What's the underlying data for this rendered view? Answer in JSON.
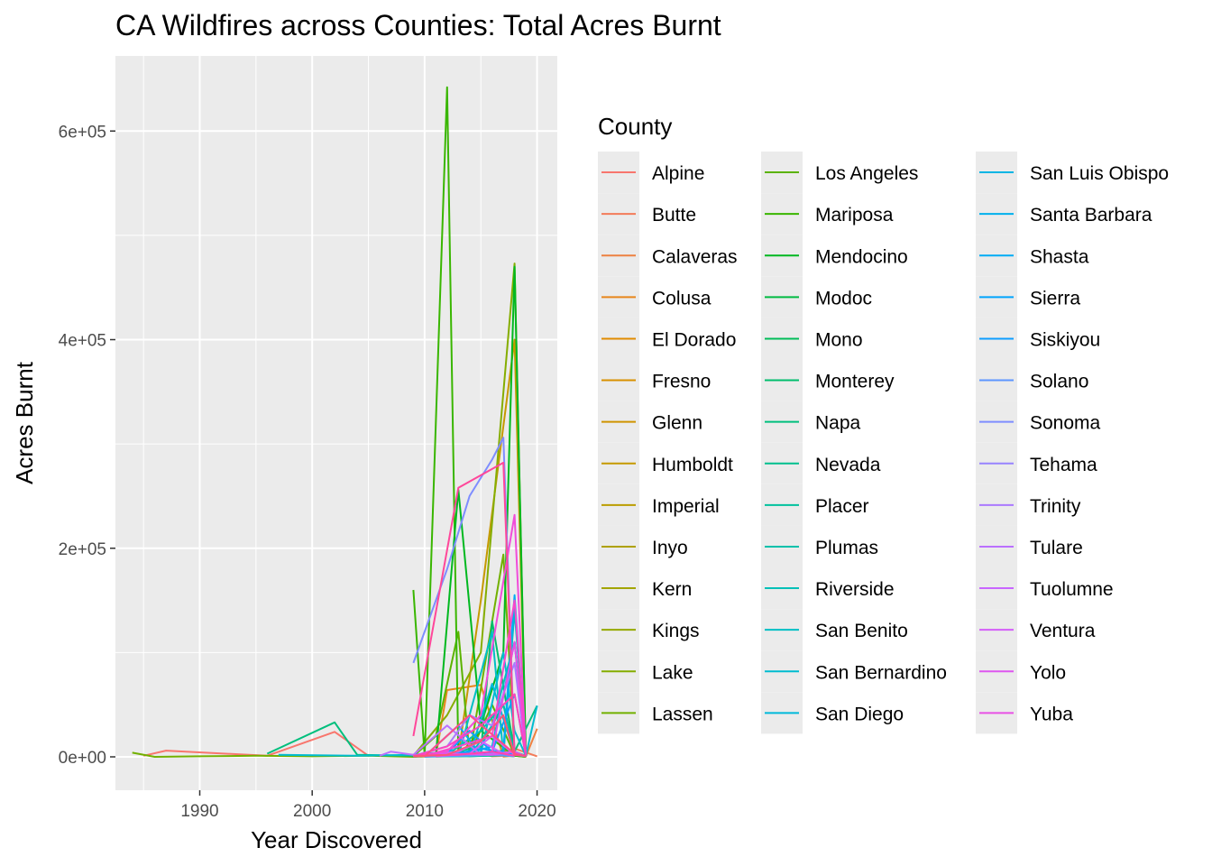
{
  "chart_data": {
    "type": "line",
    "title": "CA Wildfires across Counties: Total Acres Burnt",
    "xlabel": "Year Discovered",
    "ylabel": "Acres Burnt",
    "xlim": [
      1982.5,
      2021.8
    ],
    "ylim": [
      -32000,
      672000
    ],
    "x_ticks": [
      1990,
      2000,
      2010,
      2020
    ],
    "x_tick_labels": [
      "1990",
      "2000",
      "2010",
      "2020"
    ],
    "y_ticks": [
      0,
      200000,
      400000,
      600000
    ],
    "y_tick_labels": [
      "0e+00",
      "2e+05",
      "4e+05",
      "6e+05"
    ],
    "grid": true,
    "legend_title": "County",
    "legend_position": "right",
    "legend_columns": 3,
    "series": [
      {
        "name": "Alpine",
        "color": "#F8766D",
        "x": [
          1985,
          1987,
          1996,
          2002,
          2005
        ],
        "y": [
          1000,
          6000,
          1000,
          24000,
          1000
        ]
      },
      {
        "name": "Butte",
        "color": "#F37B59",
        "x": [
          2009,
          2012,
          2015,
          2018,
          2020
        ],
        "y": [
          0,
          5000,
          2000,
          8000,
          500
        ]
      },
      {
        "name": "Calaveras",
        "color": "#ED8141",
        "x": [
          2015,
          2016,
          2018,
          2019,
          2020
        ],
        "y": [
          3000,
          500,
          1000,
          200,
          27000
        ]
      },
      {
        "name": "Colusa",
        "color": "#E7861B",
        "x": [
          2009,
          2011,
          2012,
          2015,
          2017,
          2018
        ],
        "y": [
          0,
          500,
          64000,
          69000,
          300,
          1000
        ]
      },
      {
        "name": "El Dorado",
        "color": "#E08B00",
        "x": [
          2013,
          2014,
          2017,
          2018,
          2019
        ],
        "y": [
          500,
          2000,
          4000,
          1000,
          0
        ]
      },
      {
        "name": "Fresno",
        "color": "#D89000",
        "x": [
          2010,
          2013,
          2016,
          2017,
          2018
        ],
        "y": [
          200,
          2000,
          1000,
          6000,
          1000
        ]
      },
      {
        "name": "Glenn",
        "color": "#CF9400",
        "x": [
          2012,
          2014,
          2018,
          2019
        ],
        "y": [
          1000,
          3000,
          2000,
          0
        ]
      },
      {
        "name": "Humboldt",
        "color": "#C59900",
        "x": [
          2013,
          2015,
          2018,
          2019
        ],
        "y": [
          2000,
          150000,
          400000,
          1000
        ]
      },
      {
        "name": "Imperial",
        "color": "#BB9D00",
        "x": [
          2012,
          2015,
          2018
        ],
        "y": [
          500,
          2000,
          1000
        ]
      },
      {
        "name": "Inyo",
        "color": "#AFA100",
        "x": [
          2009,
          2012,
          2015,
          2018
        ],
        "y": [
          1000,
          500,
          3000,
          1000
        ]
      },
      {
        "name": "Kern",
        "color": "#A3A500",
        "x": [
          2009,
          2011,
          2013,
          2015,
          2017,
          2018
        ],
        "y": [
          500,
          2000,
          5000,
          3000,
          6000,
          1000
        ]
      },
      {
        "name": "Kings",
        "color": "#95A900",
        "x": [
          2011,
          2016,
          2018
        ],
        "y": [
          200,
          2000,
          500
        ]
      },
      {
        "name": "Lake",
        "color": "#85AD00",
        "x": [
          2009,
          2012,
          2015,
          2018,
          2019
        ],
        "y": [
          1000,
          40000,
          100000,
          473000,
          2000
        ]
      },
      {
        "name": "Lassen",
        "color": "#72B000",
        "x": [
          1984,
          1986,
          1990,
          1995,
          2000,
          2005,
          2009,
          2012,
          2014,
          2017,
          2018,
          2019
        ],
        "y": [
          4000,
          0,
          500,
          1000,
          500,
          1000,
          0,
          3000,
          1000,
          194000,
          5000,
          0
        ]
      },
      {
        "name": "Los Angeles",
        "color": "#5BB300",
        "x": [
          2009,
          2011,
          2013,
          2014,
          2016,
          2018,
          2019
        ],
        "y": [
          500,
          20000,
          120000,
          2000,
          50000,
          2000,
          500
        ]
      },
      {
        "name": "Mariposa",
        "color": "#39B600",
        "x": [
          2009,
          2010,
          2012,
          2013,
          2015,
          2018,
          2019
        ],
        "y": [
          160000,
          1000,
          642000,
          1000,
          25000,
          1000,
          0
        ]
      },
      {
        "name": "Mendocino",
        "color": "#00B81F",
        "x": [
          2011,
          2013,
          2015,
          2017,
          2018,
          2019
        ],
        "y": [
          500,
          256000,
          30000,
          100000,
          470000,
          1000
        ]
      },
      {
        "name": "Modoc",
        "color": "#00BA42",
        "x": [
          2009,
          2012,
          2014,
          2017,
          2018
        ],
        "y": [
          1000,
          3000,
          500,
          2000,
          145000
        ]
      },
      {
        "name": "Mono",
        "color": "#00BC59",
        "x": [
          2010,
          2013,
          2016,
          2018
        ],
        "y": [
          500,
          1000,
          2000,
          500
        ]
      },
      {
        "name": "Monterey",
        "color": "#00BE6C",
        "x": [
          2009,
          2012,
          2015,
          2016,
          2018,
          2019
        ],
        "y": [
          1000,
          2000,
          4000,
          130000,
          5000,
          1000
        ]
      },
      {
        "name": "Napa",
        "color": "#00BF7D",
        "x": [
          1996,
          2002,
          2004,
          2009,
          2012,
          2015,
          2017,
          2018,
          2020
        ],
        "y": [
          3000,
          33000,
          2000,
          1000,
          3000,
          10000,
          50000,
          5000,
          49000
        ]
      },
      {
        "name": "Nevada",
        "color": "#00C08E",
        "x": [
          2010,
          2014,
          2016,
          2018
        ],
        "y": [
          200,
          500,
          1000,
          2000
        ]
      },
      {
        "name": "Placer",
        "color": "#00C19D",
        "x": [
          2009,
          2014,
          2016,
          2018
        ],
        "y": [
          300,
          3000,
          1000,
          5000
        ]
      },
      {
        "name": "Plumas",
        "color": "#00C1AB",
        "x": [
          2012,
          2015,
          2017,
          2018,
          2019
        ],
        "y": [
          2000,
          25000,
          50000,
          3000,
          1000
        ]
      },
      {
        "name": "Riverside",
        "color": "#00C0B8",
        "x": [
          2009,
          2012,
          2014,
          2016,
          2018,
          2019
        ],
        "y": [
          1000,
          5000,
          1000,
          30000,
          110000,
          1000
        ]
      },
      {
        "name": "San Benito",
        "color": "#00BEC4",
        "x": [
          2013,
          2016,
          2017,
          2018,
          2019
        ],
        "y": [
          500,
          120000,
          2000,
          140000,
          1000
        ]
      },
      {
        "name": "San Bernardino",
        "color": "#00BCD0",
        "x": [
          1997,
          2004,
          2009,
          2012,
          2015,
          2017,
          2018,
          2019,
          2020
        ],
        "y": [
          2000,
          1000,
          2000,
          5000,
          3000,
          100000,
          25000,
          1000,
          49000
        ]
      },
      {
        "name": "San Diego",
        "color": "#00B9DA",
        "x": [
          2009,
          2012,
          2014,
          2016,
          2018
        ],
        "y": [
          1000,
          3000,
          2000,
          70000,
          3000
        ]
      },
      {
        "name": "San Luis Obispo",
        "color": "#00B5E4",
        "x": [
          2009,
          2011,
          2013,
          2016,
          2018
        ],
        "y": [
          500,
          2000,
          1000,
          3000,
          2000
        ]
      },
      {
        "name": "Santa Barbara",
        "color": "#00B0ED",
        "x": [
          2009,
          2012,
          2014,
          2016,
          2018,
          2019
        ],
        "y": [
          1000,
          3000,
          4000,
          10000,
          110000,
          1000
        ]
      },
      {
        "name": "Shasta",
        "color": "#00ABF5",
        "x": [
          2010,
          2013,
          2015,
          2017,
          2018,
          2019
        ],
        "y": [
          500,
          30000,
          2000,
          6000,
          155000,
          1000
        ]
      },
      {
        "name": "Sierra",
        "color": "#00A5FC",
        "x": [
          2012,
          2015,
          2018
        ],
        "y": [
          1000,
          8000,
          2000
        ]
      },
      {
        "name": "Siskiyou",
        "color": "#0E9EFF",
        "x": [
          2009,
          2012,
          2014,
          2016,
          2018,
          2019
        ],
        "y": [
          500,
          3000,
          25000,
          5000,
          60000,
          1000
        ]
      },
      {
        "name": "Solano",
        "color": "#5D96FF",
        "x": [
          2010,
          2014,
          2016,
          2018
        ],
        "y": [
          300,
          1000,
          2000,
          500
        ]
      },
      {
        "name": "Sonoma",
        "color": "#7E8DFF",
        "x": [
          2009,
          2012,
          2014,
          2016,
          2017,
          2018,
          2019
        ],
        "y": [
          90000,
          180000,
          250000,
          285000,
          306000,
          2000,
          500
        ]
      },
      {
        "name": "Tehama",
        "color": "#9783FF",
        "x": [
          2010,
          2013,
          2016,
          2018
        ],
        "y": [
          1000,
          2000,
          5000,
          1000
        ]
      },
      {
        "name": "Trinity",
        "color": "#AA79FF",
        "x": [
          2009,
          2012,
          2014,
          2016,
          2018,
          2019
        ],
        "y": [
          1000,
          10000,
          40000,
          30000,
          90000,
          2000
        ]
      },
      {
        "name": "Tulare",
        "color": "#BA70FF",
        "x": [
          2006,
          2007,
          2009,
          2012,
          2015,
          2018
        ],
        "y": [
          1000,
          5000,
          2000,
          30000,
          2000,
          5000
        ]
      },
      {
        "name": "Tuolumne",
        "color": "#C866FF",
        "x": [
          2009,
          2013,
          2015,
          2017,
          2018
        ],
        "y": [
          1000,
          5000,
          15000,
          3000,
          1000
        ]
      },
      {
        "name": "Ventura",
        "color": "#D45EF9",
        "x": [
          2009,
          2012,
          2014,
          2016,
          2018
        ],
        "y": [
          500,
          2000,
          3000,
          20000,
          2000
        ]
      },
      {
        "name": "Yolo",
        "color": "#DE56F0",
        "x": [
          2009,
          2012,
          2016,
          2018,
          2019
        ],
        "y": [
          1000,
          3000,
          2000,
          5000,
          500
        ]
      },
      {
        "name": "Yuba",
        "color": "#E851E5",
        "x": [
          2011,
          2014,
          2016,
          2018,
          2019
        ],
        "y": [
          500,
          3000,
          5000,
          110000,
          1000
        ]
      },
      {
        "name": "Tehama",
        "color": "#F14CD9",
        "x": [
          2009,
          2012,
          2015,
          2018,
          2019
        ],
        "y": [
          1000,
          5000,
          40000,
          232000,
          1000
        ]
      },
      {
        "name": "Trinity",
        "color": "#F848CB",
        "x": [
          2010,
          2013,
          2016,
          2018,
          2019
        ],
        "y": [
          1000,
          10000,
          20000,
          150000,
          2000
        ]
      },
      {
        "name": "Tulare",
        "color": "#FD44BC",
        "x": [
          2009,
          2012,
          2015,
          2018,
          2019
        ],
        "y": [
          500,
          10000,
          30000,
          60000,
          1000
        ]
      },
      {
        "name": "Tuolumne",
        "color": "#FF44AC",
        "x": [
          2009,
          2013,
          2016,
          2018
        ],
        "y": [
          1000,
          2000,
          5000,
          1000
        ]
      },
      {
        "name": "Ventura",
        "color": "#FF479A",
        "x": [
          2009,
          2013,
          2017,
          2018,
          2019
        ],
        "y": [
          20000,
          258000,
          282000,
          2000,
          1000
        ]
      },
      {
        "name": "Yolo",
        "color": "#FF4D88",
        "x": [
          2010,
          2014,
          2018,
          2019
        ],
        "y": [
          500,
          40000,
          3000,
          500
        ]
      },
      {
        "name": "Yuba",
        "color": "#FD5576",
        "x": [
          2009,
          2012,
          2015,
          2017,
          2018
        ],
        "y": [
          500,
          2000,
          15000,
          40000,
          1000
        ]
      }
    ]
  }
}
